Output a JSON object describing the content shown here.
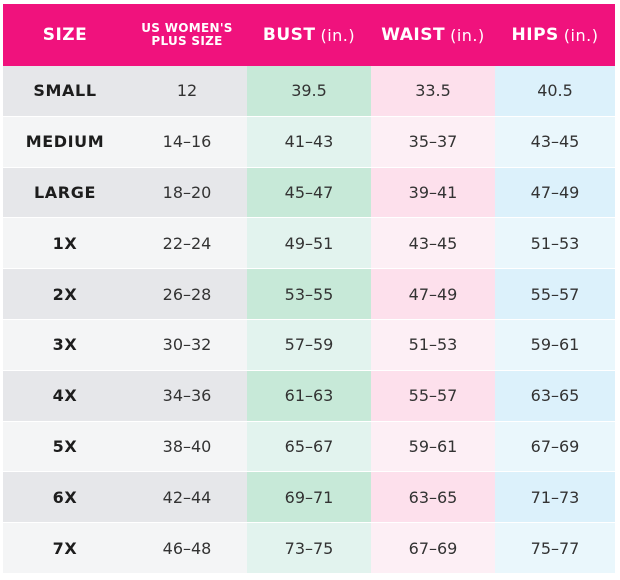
{
  "headers": [
    {
      "label": "SIZE",
      "unit": ""
    },
    {
      "label": "US WOMEN'S PLUS SIZE",
      "unit": ""
    },
    {
      "label": "BUST",
      "unit": "(in.)"
    },
    {
      "label": "WAIST",
      "unit": "(in.)"
    },
    {
      "label": "HIPS",
      "unit": "(in.)"
    }
  ],
  "rows": [
    {
      "size": "SMALL",
      "us": "12",
      "bust": "39.5",
      "waist": "33.5",
      "hips": "40.5"
    },
    {
      "size": "MEDIUM",
      "us": "14–16",
      "bust": "41–43",
      "waist": "35–37",
      "hips": "43–45"
    },
    {
      "size": "LARGE",
      "us": "18–20",
      "bust": "45–47",
      "waist": "39–41",
      "hips": "47–49"
    },
    {
      "size": "1X",
      "us": "22–24",
      "bust": "49–51",
      "waist": "43–45",
      "hips": "51–53"
    },
    {
      "size": "2X",
      "us": "26–28",
      "bust": "53–55",
      "waist": "47–49",
      "hips": "55–57"
    },
    {
      "size": "3X",
      "us": "30–32",
      "bust": "57–59",
      "waist": "51–53",
      "hips": "59–61"
    },
    {
      "size": "4X",
      "us": "34–36",
      "bust": "61–63",
      "waist": "55–57",
      "hips": "63–65"
    },
    {
      "size": "5X",
      "us": "38–40",
      "bust": "65–67",
      "waist": "59–61",
      "hips": "67–69"
    },
    {
      "size": "6X",
      "us": "42–44",
      "bust": "69–71",
      "waist": "63–65",
      "hips": "71–73"
    },
    {
      "size": "7X",
      "us": "46–48",
      "bust": "73–75",
      "waist": "67–69",
      "hips": "75–77"
    }
  ],
  "colors": {
    "header": "#f0127d",
    "bust": "#c7e9d8",
    "waist": "#fde0ec",
    "hips": "#dcf1fb"
  }
}
